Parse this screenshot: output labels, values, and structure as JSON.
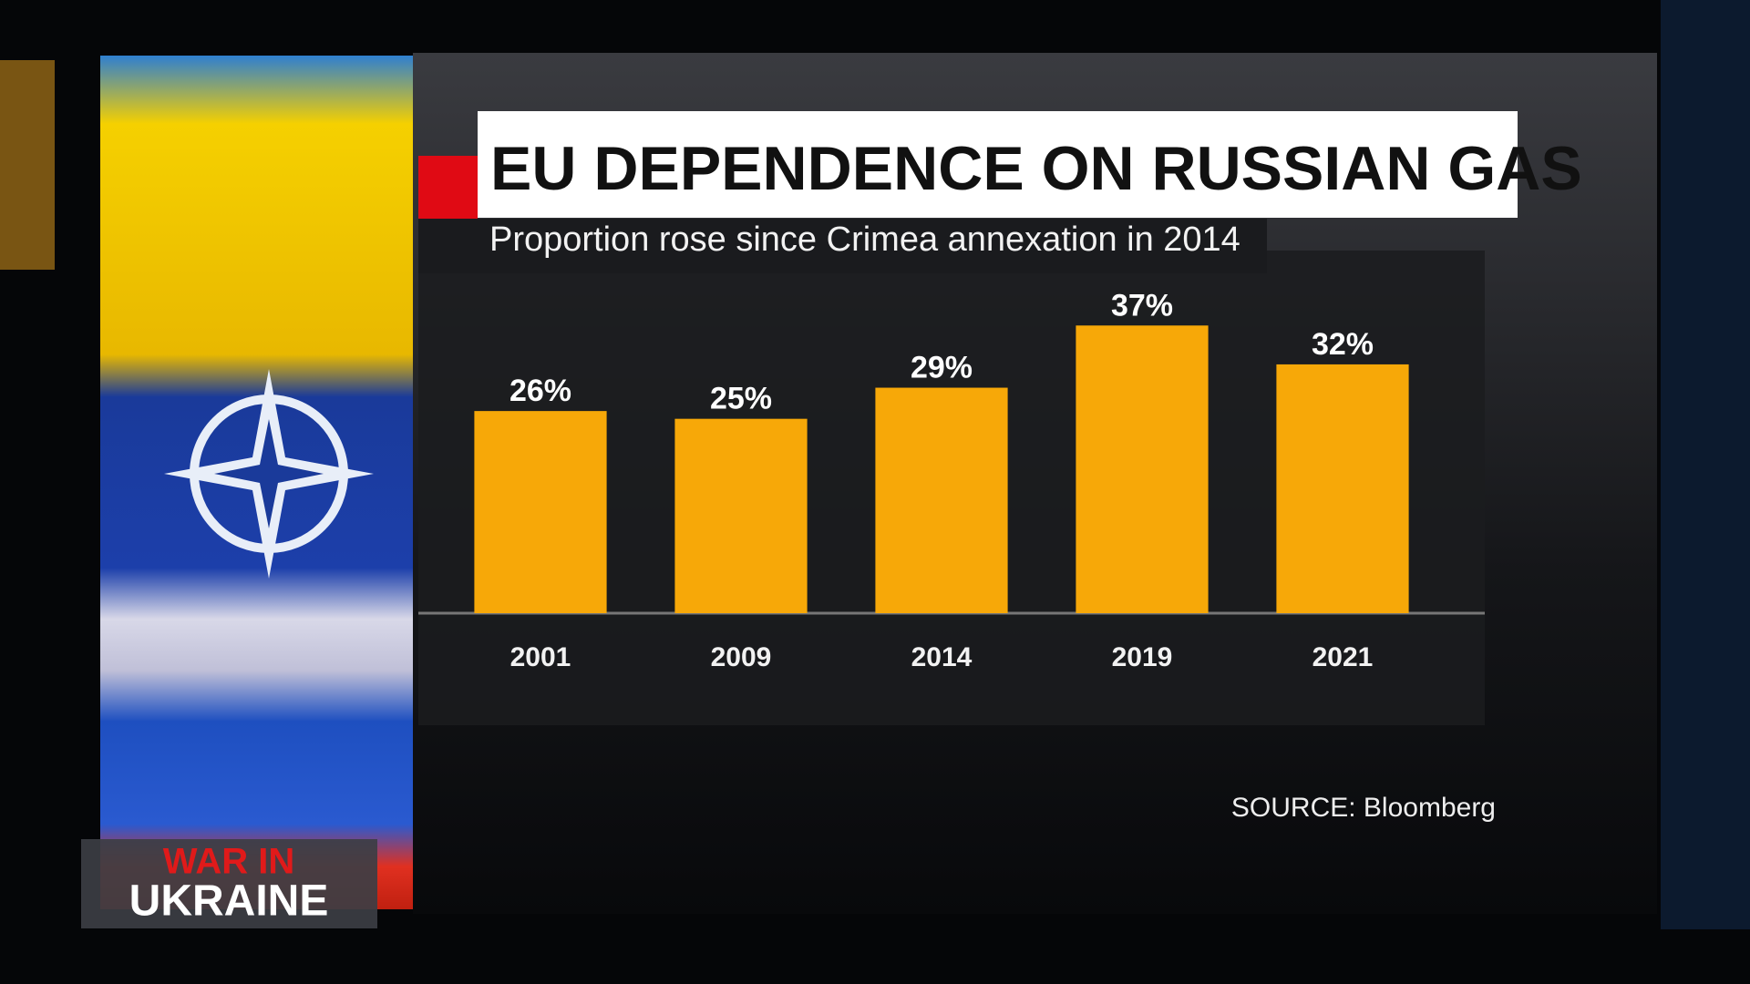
{
  "chart_data": {
    "type": "bar",
    "title": "EU DEPENDENCE ON RUSSIAN GAS",
    "subtitle": "Proportion rose since Crimea annexation in 2014",
    "categories": [
      "2001",
      "2009",
      "2014",
      "2019",
      "2021"
    ],
    "values": [
      26,
      25,
      29,
      37,
      32
    ],
    "value_labels": [
      "26%",
      "25%",
      "29%",
      "37%",
      "32%"
    ],
    "color": "#f7a808",
    "ylim": [
      0,
      45
    ],
    "source": "SOURCE: Bloomberg"
  },
  "banner": {
    "line1": "WAR IN",
    "line2": "UKRAINE"
  }
}
